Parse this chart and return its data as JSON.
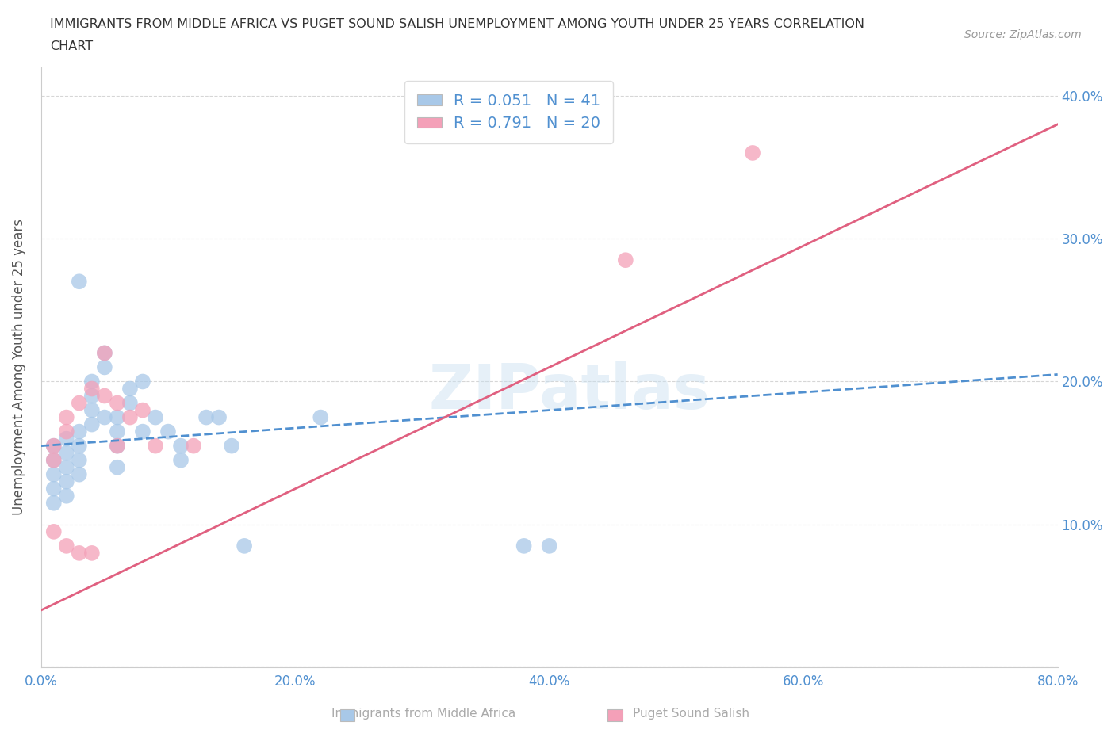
{
  "title_line1": "IMMIGRANTS FROM MIDDLE AFRICA VS PUGET SOUND SALISH UNEMPLOYMENT AMONG YOUTH UNDER 25 YEARS CORRELATION",
  "title_line2": "CHART",
  "source": "Source: ZipAtlas.com",
  "ylabel": "Unemployment Among Youth under 25 years",
  "xlim": [
    0.0,
    0.8
  ],
  "ylim": [
    0.0,
    0.42
  ],
  "x_ticks": [
    0.0,
    0.2,
    0.4,
    0.6,
    0.8
  ],
  "x_tick_labels": [
    "0.0%",
    "20.0%",
    "40.0%",
    "60.0%",
    "80.0%"
  ],
  "y_ticks": [
    0.0,
    0.1,
    0.2,
    0.3,
    0.4
  ],
  "y_tick_labels": [
    "",
    "10.0%",
    "20.0%",
    "30.0%",
    "40.0%"
  ],
  "legend_label1": "Immigrants from Middle Africa",
  "legend_label2": "Puget Sound Salish",
  "R1": 0.051,
  "N1": 41,
  "R2": 0.791,
  "N2": 20,
  "color_blue": "#a8c8e8",
  "color_pink": "#f4a0b8",
  "line_color_blue": "#5090d0",
  "line_color_pink": "#e06080",
  "watermark": "ZIPatlas",
  "blue_scatter_x": [
    0.01,
    0.01,
    0.01,
    0.01,
    0.01,
    0.02,
    0.02,
    0.02,
    0.02,
    0.02,
    0.03,
    0.03,
    0.03,
    0.03,
    0.04,
    0.04,
    0.04,
    0.04,
    0.05,
    0.05,
    0.05,
    0.06,
    0.06,
    0.06,
    0.06,
    0.07,
    0.07,
    0.08,
    0.08,
    0.09,
    0.1,
    0.11,
    0.11,
    0.13,
    0.14,
    0.15,
    0.16,
    0.22,
    0.38,
    0.4,
    0.03
  ],
  "blue_scatter_y": [
    0.155,
    0.145,
    0.135,
    0.125,
    0.115,
    0.16,
    0.15,
    0.14,
    0.13,
    0.12,
    0.165,
    0.155,
    0.145,
    0.135,
    0.2,
    0.19,
    0.18,
    0.17,
    0.21,
    0.22,
    0.175,
    0.175,
    0.165,
    0.155,
    0.14,
    0.195,
    0.185,
    0.2,
    0.165,
    0.175,
    0.165,
    0.155,
    0.145,
    0.175,
    0.175,
    0.155,
    0.085,
    0.175,
    0.085,
    0.085,
    0.27
  ],
  "pink_scatter_x": [
    0.01,
    0.01,
    0.01,
    0.02,
    0.02,
    0.02,
    0.03,
    0.03,
    0.04,
    0.04,
    0.05,
    0.05,
    0.06,
    0.06,
    0.07,
    0.08,
    0.09,
    0.12,
    0.46,
    0.56
  ],
  "pink_scatter_y": [
    0.155,
    0.145,
    0.095,
    0.175,
    0.165,
    0.085,
    0.185,
    0.08,
    0.195,
    0.08,
    0.22,
    0.19,
    0.185,
    0.155,
    0.175,
    0.18,
    0.155,
    0.155,
    0.285,
    0.36
  ],
  "blue_line_x0": 0.0,
  "blue_line_x1": 0.8,
  "blue_line_y0": 0.155,
  "blue_line_y1": 0.205,
  "pink_line_x0": 0.0,
  "pink_line_x1": 0.8,
  "pink_line_y0": 0.04,
  "pink_line_y1": 0.38
}
